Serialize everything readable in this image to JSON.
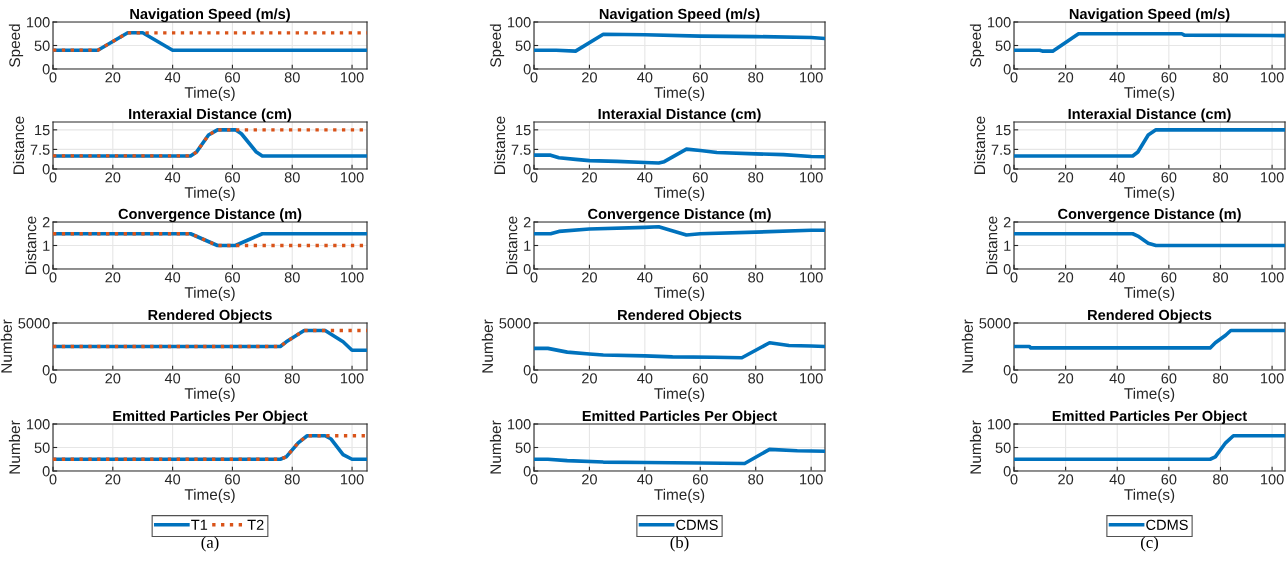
{
  "chart_data": [
    {
      "type": "line",
      "title": "Navigation Speed (m/s)",
      "xlabel": "Time(s)",
      "ylabel": "Speed",
      "xlim": [
        0,
        105
      ],
      "xticks": [
        0,
        20,
        40,
        60,
        80,
        100
      ],
      "ylim": [
        0,
        100
      ],
      "yticks": [
        0,
        50,
        100
      ],
      "grid": true,
      "series": [
        {
          "color": "#0072bd",
          "line_style": "solid",
          "x": [
            0,
            15,
            25,
            30,
            40,
            105
          ],
          "values": [
            40,
            40,
            77,
            77,
            40,
            40
          ]
        },
        {
          "color": "#d95319",
          "line_style": "dotted",
          "x": [
            0,
            15,
            25,
            105
          ],
          "values": [
            40,
            40,
            77,
            77
          ]
        }
      ]
    },
    {
      "type": "line",
      "title": "Interaxial Distance (cm)",
      "xlabel": "Time(s)",
      "ylabel": "Distance",
      "xlim": [
        0,
        105
      ],
      "xticks": [
        0,
        20,
        40,
        60,
        80,
        100
      ],
      "ylim": [
        0,
        18
      ],
      "yticks": [
        0,
        7.5,
        15
      ],
      "grid": true,
      "series": [
        {
          "color": "#0072bd",
          "line_style": "solid",
          "x": [
            0,
            46,
            48,
            52,
            55,
            61,
            63,
            68,
            70,
            105
          ],
          "values": [
            5,
            5,
            6.5,
            13,
            15,
            15,
            13.5,
            6.5,
            5,
            5
          ]
        },
        {
          "color": "#d95319",
          "line_style": "dotted",
          "x": [
            0,
            46,
            48,
            52,
            55,
            105
          ],
          "values": [
            5,
            5,
            6.5,
            13,
            15,
            15
          ]
        }
      ]
    },
    {
      "type": "line",
      "title": "Convergence Distance (m)",
      "xlabel": "Time(s)",
      "ylabel": "Distance",
      "xlim": [
        0,
        105
      ],
      "xticks": [
        0,
        20,
        40,
        60,
        80,
        100
      ],
      "ylim": [
        0,
        2
      ],
      "yticks": [
        0,
        1,
        2
      ],
      "grid": true,
      "series": [
        {
          "color": "#0072bd",
          "line_style": "solid",
          "x": [
            0,
            46,
            55,
            61,
            70,
            105
          ],
          "values": [
            1.5,
            1.5,
            1,
            1,
            1.5,
            1.5
          ]
        },
        {
          "color": "#d95319",
          "line_style": "dotted",
          "x": [
            0,
            46,
            55,
            105
          ],
          "values": [
            1.5,
            1.5,
            1,
            1
          ]
        }
      ]
    },
    {
      "type": "line",
      "title": "Rendered Objects",
      "xlabel": "Time(s)",
      "ylabel": "Number",
      "xlim": [
        0,
        105
      ],
      "xticks": [
        0,
        20,
        40,
        60,
        80,
        100
      ],
      "ylim": [
        0,
        5000
      ],
      "yticks": [
        0,
        5000
      ],
      "grid": true,
      "series": [
        {
          "color": "#0072bd",
          "line_style": "solid",
          "x": [
            0,
            76,
            78,
            80,
            82,
            84,
            91,
            93,
            95,
            97,
            100,
            105
          ],
          "values": [
            2500,
            2500,
            3000,
            3400,
            3800,
            4200,
            4200,
            3800,
            3400,
            3000,
            2100,
            2100
          ]
        },
        {
          "color": "#d95319",
          "line_style": "dotted",
          "x": [
            0,
            76,
            78,
            80,
            82,
            84,
            105
          ],
          "values": [
            2500,
            2500,
            3000,
            3400,
            3800,
            4200,
            4200
          ]
        }
      ]
    },
    {
      "type": "line",
      "title": "Emitted Particles Per Object",
      "xlabel": "Time(s)",
      "ylabel": "Number",
      "xlim": [
        0,
        105
      ],
      "xticks": [
        0,
        20,
        40,
        60,
        80,
        100
      ],
      "ylim": [
        0,
        100
      ],
      "yticks": [
        0,
        50,
        100
      ],
      "grid": true,
      "legend": "bottom",
      "annotations": [
        "(a)"
      ],
      "series": [
        {
          "name": "T1",
          "color": "#0072bd",
          "line_style": "solid",
          "x": [
            0,
            76,
            78,
            82,
            85,
            91,
            93,
            97,
            100,
            105
          ],
          "values": [
            25,
            25,
            30,
            60,
            75,
            75,
            68,
            35,
            25,
            25
          ]
        },
        {
          "name": "T2",
          "color": "#d95319",
          "line_style": "dotted",
          "x": [
            0,
            76,
            78,
            82,
            85,
            105
          ],
          "values": [
            25,
            25,
            30,
            60,
            75,
            75
          ]
        }
      ]
    },
    {
      "type": "line",
      "title": "Navigation Speed (m/s)",
      "xlabel": "Time(s)",
      "ylabel": "Speed",
      "xlim": [
        0,
        105
      ],
      "xticks": [
        0,
        20,
        40,
        60,
        80,
        100
      ],
      "ylim": [
        0,
        100
      ],
      "yticks": [
        0,
        50,
        100
      ],
      "grid": true,
      "series": [
        {
          "color": "#0072bd",
          "line_style": "solid",
          "x": [
            0,
            8,
            15,
            25,
            40,
            60,
            80,
            100,
            105
          ],
          "values": [
            40,
            40,
            38,
            74,
            73,
            70,
            69,
            67,
            65
          ]
        }
      ]
    },
    {
      "type": "line",
      "title": "Interaxial Distance (cm)",
      "xlabel": "Time(s)",
      "ylabel": "Distance",
      "xlim": [
        0,
        105
      ],
      "xticks": [
        0,
        20,
        40,
        60,
        80,
        100
      ],
      "ylim": [
        0,
        18
      ],
      "yticks": [
        0,
        7.5,
        15
      ],
      "grid": true,
      "series": [
        {
          "color": "#0072bd",
          "line_style": "solid",
          "x": [
            0,
            6,
            9,
            15,
            20,
            30,
            40,
            45,
            47,
            55,
            60,
            66,
            80,
            90,
            100,
            105
          ],
          "values": [
            5.3,
            5.3,
            4.3,
            3.7,
            3.2,
            2.9,
            2.5,
            2.3,
            2.8,
            7.6,
            7.1,
            6.3,
            5.8,
            5.5,
            4.8,
            4.7
          ]
        }
      ]
    },
    {
      "type": "line",
      "title": "Convergence Distance (m)",
      "xlabel": "Time(s)",
      "ylabel": "Distance",
      "xlim": [
        0,
        105
      ],
      "xticks": [
        0,
        20,
        40,
        60,
        80,
        100
      ],
      "ylim": [
        0,
        2
      ],
      "yticks": [
        0,
        1,
        2
      ],
      "grid": true,
      "series": [
        {
          "color": "#0072bd",
          "line_style": "solid",
          "x": [
            0,
            6,
            9,
            20,
            40,
            45,
            55,
            60,
            80,
            100,
            105
          ],
          "values": [
            1.5,
            1.5,
            1.6,
            1.7,
            1.77,
            1.8,
            1.45,
            1.5,
            1.57,
            1.65,
            1.65
          ]
        }
      ]
    },
    {
      "type": "line",
      "title": "Rendered Objects",
      "xlabel": "Time(s)",
      "ylabel": "Number",
      "xlim": [
        0,
        105
      ],
      "xticks": [
        0,
        20,
        40,
        60,
        80,
        100
      ],
      "ylim": [
        0,
        5000
      ],
      "yticks": [
        0,
        5000
      ],
      "grid": true,
      "series": [
        {
          "color": "#0072bd",
          "line_style": "solid",
          "x": [
            0,
            5,
            12,
            20,
            25,
            40,
            50,
            65,
            75,
            85,
            92,
            100,
            105
          ],
          "values": [
            2300,
            2300,
            1900,
            1700,
            1600,
            1500,
            1400,
            1350,
            1300,
            2900,
            2600,
            2550,
            2500
          ]
        }
      ]
    },
    {
      "type": "line",
      "title": "Emitted Particles Per Object",
      "xlabel": "Time(s)",
      "ylabel": "Number",
      "xlim": [
        0,
        105
      ],
      "xticks": [
        0,
        20,
        40,
        60,
        80,
        100
      ],
      "ylim": [
        0,
        100
      ],
      "yticks": [
        0,
        50,
        100
      ],
      "grid": true,
      "legend": "bottom",
      "annotations": [
        "(b)"
      ],
      "series": [
        {
          "name": "CDMS",
          "color": "#0072bd",
          "line_style": "solid",
          "x": [
            0,
            5,
            12,
            25,
            40,
            60,
            76,
            85,
            95,
            105
          ],
          "values": [
            25,
            25,
            22,
            19,
            18,
            17,
            16,
            46,
            43,
            42
          ]
        }
      ]
    },
    {
      "type": "line",
      "title": "Navigation Speed (m/s)",
      "xlabel": "Time(s)",
      "ylabel": "Speed",
      "xlim": [
        0,
        105
      ],
      "xticks": [
        0,
        20,
        40,
        60,
        80,
        100
      ],
      "ylim": [
        0,
        100
      ],
      "yticks": [
        0,
        50,
        100
      ],
      "grid": true,
      "series": [
        {
          "color": "#0072bd",
          "line_style": "solid",
          "x": [
            0,
            10,
            11,
            15,
            25,
            65,
            66,
            105
          ],
          "values": [
            40,
            40,
            38,
            38,
            75,
            75,
            72,
            71
          ]
        }
      ]
    },
    {
      "type": "line",
      "title": "Interaxial Distance (cm)",
      "xlabel": "Time(s)",
      "ylabel": "Distance",
      "xlim": [
        0,
        105
      ],
      "xticks": [
        0,
        20,
        40,
        60,
        80,
        100
      ],
      "ylim": [
        0,
        18
      ],
      "yticks": [
        0,
        7.5,
        15
      ],
      "grid": true,
      "series": [
        {
          "color": "#0072bd",
          "line_style": "solid",
          "x": [
            0,
            46,
            48,
            52,
            55,
            105
          ],
          "values": [
            5,
            5,
            6.5,
            13,
            15,
            15
          ]
        }
      ]
    },
    {
      "type": "line",
      "title": "Convergence Distance (m)",
      "xlabel": "Time(s)",
      "ylabel": "Distance",
      "xlim": [
        0,
        105
      ],
      "xticks": [
        0,
        20,
        40,
        60,
        80,
        100
      ],
      "ylim": [
        0,
        2
      ],
      "yticks": [
        0,
        1,
        2
      ],
      "grid": true,
      "series": [
        {
          "color": "#0072bd",
          "line_style": "solid",
          "x": [
            0,
            46,
            48,
            52,
            55,
            105
          ],
          "values": [
            1.5,
            1.5,
            1.4,
            1.1,
            1,
            1
          ]
        }
      ]
    },
    {
      "type": "line",
      "title": "Rendered Objects",
      "xlabel": "Time(s)",
      "ylabel": "Number",
      "xlim": [
        0,
        105
      ],
      "xticks": [
        0,
        20,
        40,
        60,
        80,
        100
      ],
      "ylim": [
        0,
        5000
      ],
      "yticks": [
        0,
        5000
      ],
      "grid": true,
      "series": [
        {
          "color": "#0072bd",
          "line_style": "solid",
          "x": [
            0,
            6,
            6.5,
            76,
            78,
            80,
            82,
            84,
            105
          ],
          "values": [
            2500,
            2500,
            2350,
            2350,
            2900,
            3300,
            3700,
            4200,
            4200
          ]
        }
      ]
    },
    {
      "type": "line",
      "title": "Emitted Particles Per Object",
      "xlabel": "Time(s)",
      "ylabel": "Number",
      "xlim": [
        0,
        105
      ],
      "xticks": [
        0,
        20,
        40,
        60,
        80,
        100
      ],
      "ylim": [
        0,
        100
      ],
      "yticks": [
        0,
        50,
        100
      ],
      "grid": true,
      "legend": "bottom",
      "annotations": [
        "(c)"
      ],
      "series": [
        {
          "name": "CDMS",
          "color": "#0072bd",
          "line_style": "solid",
          "x": [
            0,
            76,
            78,
            82,
            85,
            105
          ],
          "values": [
            25,
            25,
            30,
            60,
            75,
            75
          ]
        }
      ]
    }
  ]
}
